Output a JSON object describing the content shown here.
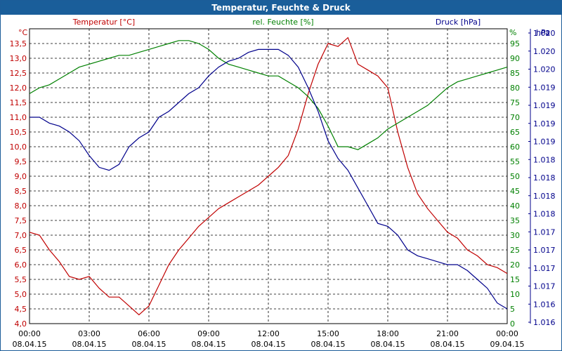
{
  "window": {
    "title": "Temperatur, Feuchte & Druck"
  },
  "chart_data": {
    "type": "line",
    "title": "Temperatur, Feuchte & Druck",
    "grid": true,
    "axes": {
      "temperature": {
        "unit_label": "°C",
        "header": "Temperatur [°C]",
        "ylim": [
          4.0,
          14.0
        ],
        "color": "#c00000",
        "ticks": [
          "4,0",
          "4,5",
          "5,0",
          "5,5",
          "6,0",
          "6,5",
          "7,0",
          "7,5",
          "8,0",
          "8,5",
          "9,0",
          "9,5",
          "10,0",
          "10,5",
          "11,0",
          "11,5",
          "12,0",
          "12,5",
          "13,0",
          "13,5"
        ]
      },
      "humidity": {
        "unit_label": "%",
        "header": "rel. Feuchte [%]",
        "ylim": [
          0,
          100
        ],
        "color": "#008000",
        "ticks": [
          "0",
          "5",
          "10",
          "15",
          "20",
          "25",
          "30",
          "35",
          "40",
          "45",
          "50",
          "55",
          "60",
          "65",
          "70",
          "75",
          "80",
          "85",
          "90",
          "95"
        ]
      },
      "pressure": {
        "unit_label": "hPa",
        "header": "Druck [hPa]",
        "color": "#00008b",
        "ticks": [
          "1.016",
          "1.016",
          "1.017",
          "1.017",
          "1.017",
          "1.017",
          "1.018",
          "1.018",
          "1.018",
          "1.018",
          "1.019",
          "1.019",
          "1.019",
          "1.019",
          "1.020",
          "1.020",
          "1.020"
        ]
      }
    },
    "x_ticks": [
      {
        "time": "00:00",
        "date": "08.04.15"
      },
      {
        "time": "03:00",
        "date": "08.04.15"
      },
      {
        "time": "06:00",
        "date": "08.04.15"
      },
      {
        "time": "09:00",
        "date": "08.04.15"
      },
      {
        "time": "12:00",
        "date": "08.04.15"
      },
      {
        "time": "15:00",
        "date": "08.04.15"
      },
      {
        "time": "18:00",
        "date": "08.04.15"
      },
      {
        "time": "21:00",
        "date": "08.04.15"
      },
      {
        "time": "00:00",
        "date": "09.04.15"
      }
    ],
    "x_hours_range": [
      0,
      24
    ],
    "series": [
      {
        "name": "Temperatur [°C]",
        "axis": "temperature",
        "color": "#c00000",
        "x": [
          0,
          0.5,
          1,
          1.5,
          2,
          2.5,
          3,
          3.5,
          4,
          4.5,
          5,
          5.5,
          6,
          6.5,
          7,
          7.5,
          8,
          8.5,
          9,
          9.5,
          10,
          10.5,
          11,
          11.5,
          12,
          12.5,
          13,
          13.5,
          14,
          14.5,
          15,
          15.5,
          16,
          16.5,
          17,
          17.5,
          18,
          18.5,
          19,
          19.5,
          20,
          20.5,
          21,
          21.5,
          22,
          22.5,
          23,
          23.5,
          24
        ],
        "values": [
          7.1,
          7.0,
          6.5,
          6.1,
          5.6,
          5.5,
          5.6,
          5.2,
          4.9,
          4.9,
          4.6,
          4.3,
          4.6,
          5.3,
          6.0,
          6.5,
          6.9,
          7.3,
          7.6,
          7.9,
          8.1,
          8.3,
          8.5,
          8.7,
          9.0,
          9.3,
          9.7,
          10.6,
          11.8,
          12.8,
          13.5,
          13.4,
          13.7,
          12.8,
          12.6,
          12.4,
          12.0,
          10.5,
          9.3,
          8.4,
          7.9,
          7.5,
          7.1,
          6.9,
          6.5,
          6.3,
          6.0,
          5.9,
          5.7
        ]
      },
      {
        "name": "rel. Feuchte [%]",
        "axis": "humidity",
        "color": "#008000",
        "x": [
          0,
          0.5,
          1,
          1.5,
          2,
          2.5,
          3,
          3.5,
          4,
          4.5,
          5,
          5.5,
          6,
          6.5,
          7,
          7.5,
          8,
          8.5,
          9,
          9.5,
          10,
          10.5,
          11,
          11.5,
          12,
          12.5,
          13,
          13.5,
          14,
          14.5,
          15,
          15.5,
          16,
          16.5,
          17,
          17.5,
          18,
          18.5,
          19,
          19.5,
          20,
          20.5,
          21,
          21.5,
          22,
          22.5,
          23,
          23.5,
          24
        ],
        "values": [
          78,
          80,
          81,
          83,
          85,
          87,
          88,
          89,
          90,
          91,
          91,
          92,
          93,
          94,
          95,
          96,
          96,
          95,
          93,
          90,
          88,
          87,
          86,
          85,
          84,
          84,
          82,
          80,
          77,
          73,
          67,
          60,
          60,
          59,
          61,
          63,
          66,
          68,
          70,
          72,
          74,
          77,
          80,
          82,
          83,
          84,
          85,
          86,
          87
        ]
      },
      {
        "name": "Druck [hPa]",
        "axis": "pressure",
        "color": "#00008b",
        "x": [
          0,
          0.5,
          1,
          1.5,
          2,
          2.5,
          3,
          3.5,
          4,
          4.5,
          5,
          5.5,
          6,
          6.5,
          7,
          7.5,
          8,
          8.5,
          9,
          9.5,
          10,
          10.5,
          11,
          11.5,
          12,
          12.5,
          13,
          13.5,
          14,
          14.5,
          15,
          15.5,
          16,
          16.5,
          17,
          17.5,
          18,
          18.5,
          19,
          19.5,
          20,
          20.5,
          21,
          21.5,
          22,
          22.5,
          23,
          23.5,
          24
        ],
        "values": [
          70,
          70,
          68,
          67,
          65,
          62,
          57,
          53,
          52,
          54,
          60,
          63,
          65,
          70,
          72,
          75,
          78,
          80,
          84,
          87,
          89,
          90,
          92,
          93,
          93,
          93,
          91,
          87,
          80,
          72,
          62,
          56,
          52,
          46,
          40,
          34,
          33,
          30,
          25,
          23,
          22,
          21,
          20,
          20,
          18,
          15,
          12,
          7,
          5
        ]
      }
    ]
  }
}
